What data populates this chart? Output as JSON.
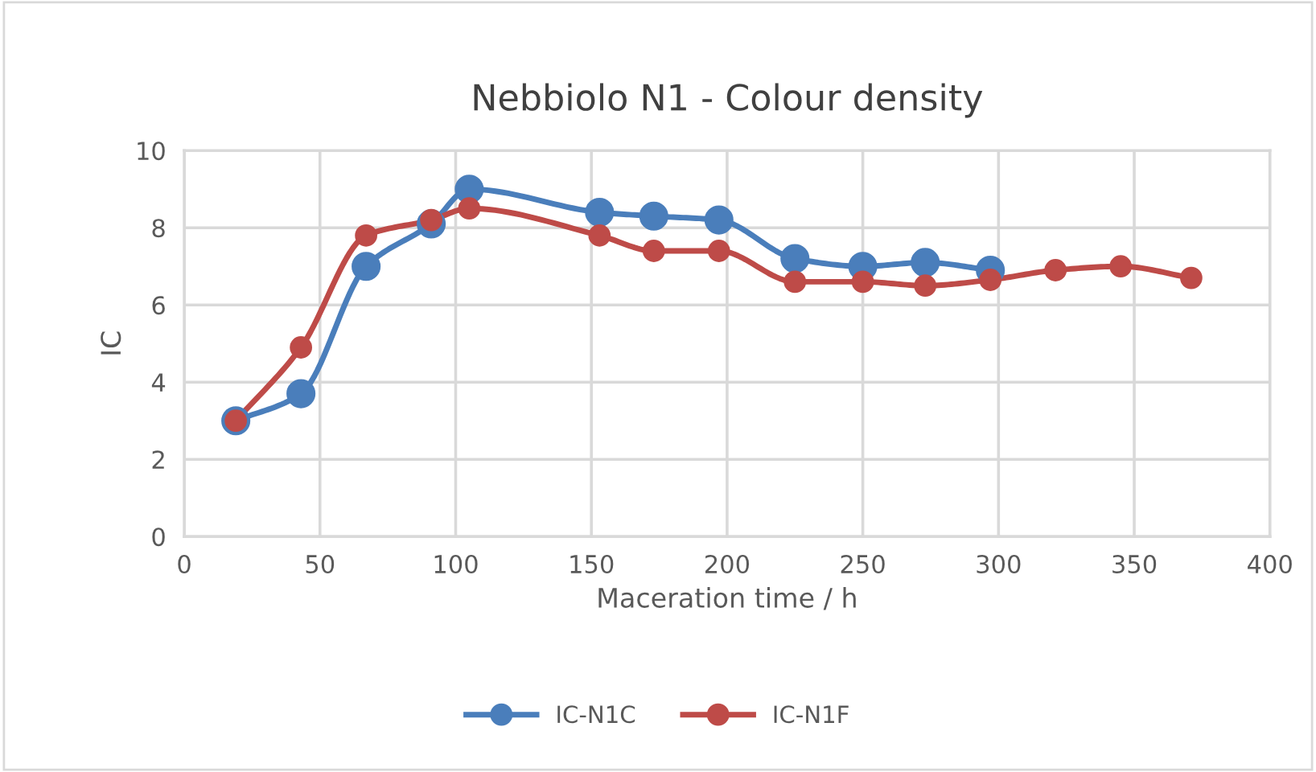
{
  "chart_data": {
    "type": "line",
    "title": "Nebbiolo N1 - Colour density",
    "xlabel": "Maceration time / h",
    "ylabel": "IC",
    "xlim": [
      0,
      400
    ],
    "xticks": [
      0,
      50,
      100,
      150,
      200,
      250,
      300,
      350,
      400
    ],
    "ylim": [
      0,
      10
    ],
    "yticks": [
      0,
      2,
      4,
      6,
      8,
      10
    ],
    "grid": true,
    "legend": "bottom",
    "marker": "circle",
    "line_style": "solid",
    "series": [
      {
        "name": "IC-N1C",
        "color": "#4a7ebb",
        "x": [
          19,
          43,
          67,
          91,
          105,
          153,
          173,
          197,
          225,
          250,
          273,
          297
        ],
        "values": [
          3.0,
          3.7,
          7.0,
          8.1,
          9.0,
          8.4,
          8.3,
          8.2,
          7.2,
          7.0,
          7.1,
          6.9
        ]
      },
      {
        "name": "IC-N1F",
        "color": "#be4b48",
        "x": [
          19,
          43,
          67,
          91,
          105,
          153,
          173,
          197,
          225,
          250,
          273,
          297,
          321,
          345,
          371
        ],
        "values": [
          3.0,
          4.9,
          7.8,
          8.2,
          8.5,
          7.8,
          7.4,
          7.4,
          6.6,
          6.6,
          6.5,
          6.65,
          6.9,
          7.0,
          6.7
        ]
      }
    ]
  }
}
